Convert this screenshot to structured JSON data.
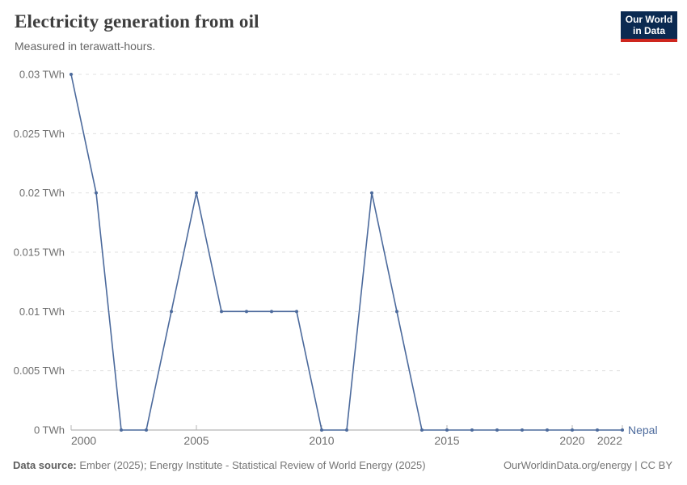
{
  "header": {
    "title": "Electricity generation from oil",
    "subtitle": "Measured in terawatt-hours.",
    "logo": {
      "line1": "Our World",
      "line2": "in Data"
    }
  },
  "chart_data": {
    "type": "line",
    "title": "Electricity generation from oil",
    "subtitle": "Measured in terawatt-hours.",
    "unit": "TWh",
    "x": [
      2000,
      2001,
      2002,
      2003,
      2004,
      2005,
      2006,
      2007,
      2008,
      2009,
      2010,
      2011,
      2012,
      2013,
      2014,
      2015,
      2016,
      2017,
      2018,
      2019,
      2020,
      2021,
      2022
    ],
    "series": [
      {
        "name": "Nepal",
        "color": "#4C6A9C",
        "values": [
          0.03,
          0.02,
          0,
          0,
          0.01,
          0.02,
          0.01,
          0.01,
          0.01,
          0.01,
          0,
          0,
          0.02,
          0.01,
          0,
          0,
          0,
          0,
          0,
          0,
          0,
          0,
          0
        ]
      }
    ],
    "ylim": [
      0,
      0.03
    ],
    "yticks": {
      "values": [
        0,
        0.005,
        0.01,
        0.015,
        0.02,
        0.025,
        0.03
      ],
      "labels": [
        "0 TWh",
        "0.005 TWh",
        "0.01 TWh",
        "0.015 TWh",
        "0.02 TWh",
        "0.025 TWh",
        "0.03 TWh"
      ]
    },
    "xticks": [
      2000,
      2005,
      2010,
      2015,
      2020,
      2022
    ],
    "grid": "horizontal-dashed",
    "legend": "entity-label-at-line-end",
    "markers": true
  },
  "footer": {
    "source_label": "Data source:",
    "source_text": "Ember (2025); Energy Institute - Statistical Review of World Energy (2025)",
    "credit": "OurWorldinData.org/energy | CC BY"
  },
  "colors": {
    "line": "#4C6A9C",
    "grid": "#e0e0e0",
    "axis": "#a3a3a3",
    "tick": "#b5b5b5",
    "axis_text": "#6e6e6e",
    "title_text": "#3d3d3d",
    "subtitle_text": "#666666",
    "footer_text": "#757575",
    "logo_bg": "#0B2A51",
    "logo_bar": "#CE261E"
  }
}
